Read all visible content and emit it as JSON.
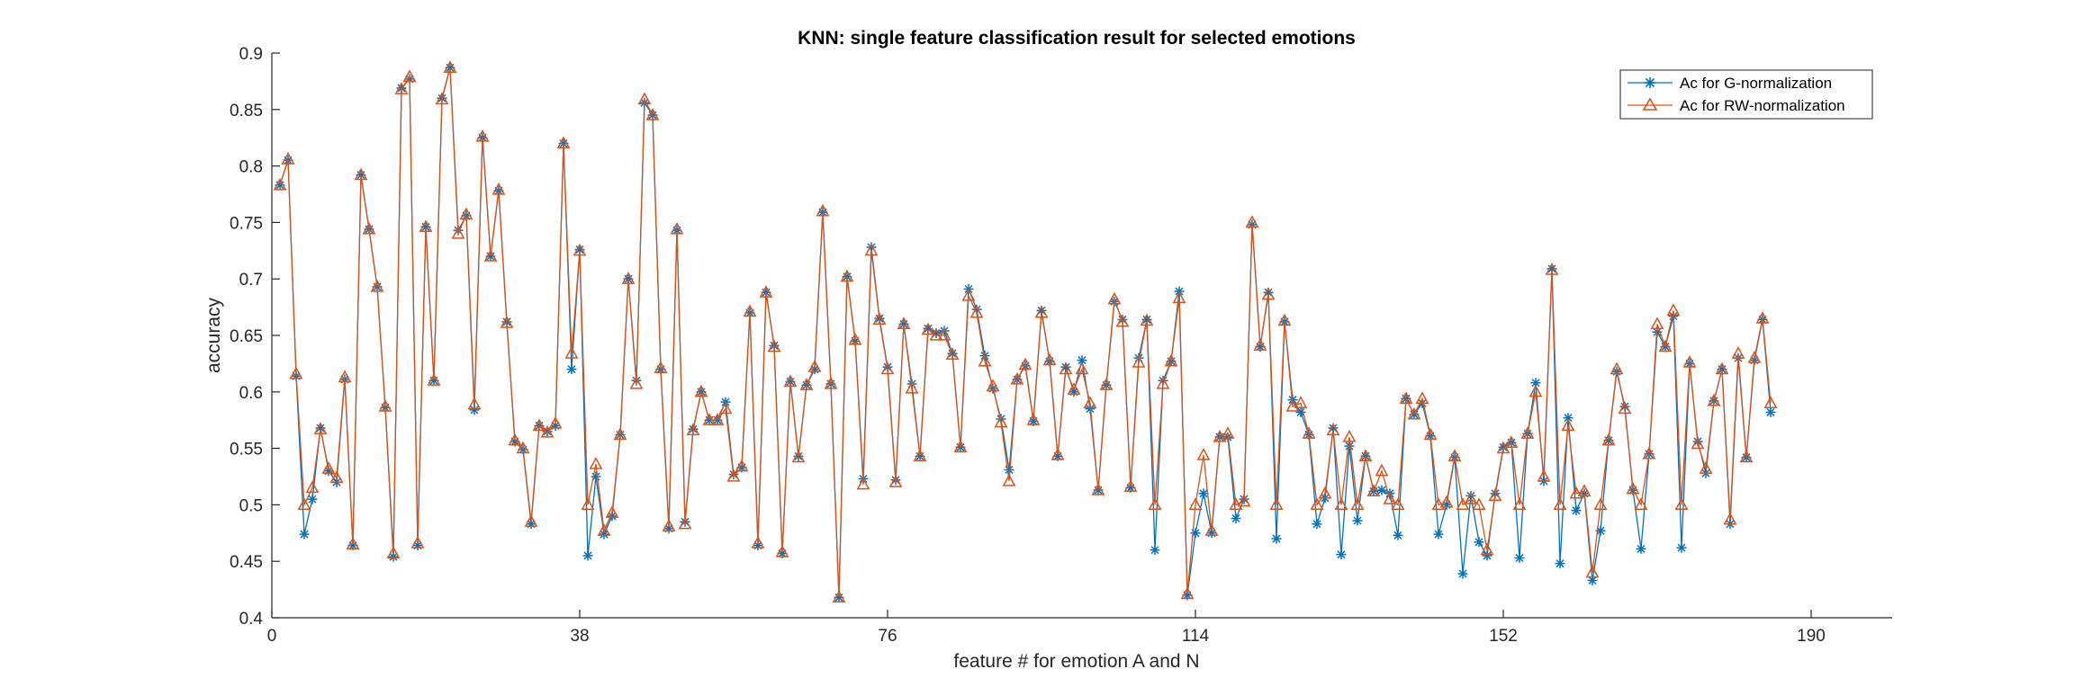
{
  "chart_data": {
    "type": "line",
    "title": "KNN: single feature classification result for selected emotions",
    "xlabel": "feature # for emotion A and N",
    "ylabel": "accuracy",
    "xlim": [
      0,
      200
    ],
    "ylim": [
      0.4,
      0.9
    ],
    "xticks": [
      0,
      38,
      76,
      114,
      152,
      190
    ],
    "yticks": [
      0.4,
      0.45,
      0.5,
      0.55,
      0.6,
      0.65,
      0.7,
      0.75,
      0.8,
      0.85,
      0.9
    ],
    "ytick_labels": [
      "0.4",
      "0.45",
      "0.5",
      "0.55",
      "0.6",
      "0.65",
      "0.7",
      "0.75",
      "0.8",
      "0.85",
      "0.9"
    ],
    "grid": false,
    "legend_position": "top-right",
    "series": [
      {
        "name": "Ac for G-normalization",
        "color": "#0072BD",
        "marker": "asterisk",
        "values": [
          0.783,
          0.805,
          0.614,
          0.474,
          0.505,
          0.568,
          0.53,
          0.52,
          0.611,
          0.464,
          0.792,
          0.744,
          0.693,
          0.586,
          0.454,
          0.869,
          0.877,
          0.464,
          0.746,
          0.61,
          0.86,
          0.887,
          0.743,
          0.756,
          0.584,
          0.825,
          0.72,
          0.778,
          0.662,
          0.556,
          0.549,
          0.483,
          0.57,
          0.565,
          0.57,
          0.82,
          0.62,
          0.726,
          0.455,
          0.525,
          0.474,
          0.49,
          0.562,
          0.7,
          0.61,
          0.856,
          0.845,
          0.62,
          0.479,
          0.743,
          0.485,
          0.567,
          0.6,
          0.575,
          0.575,
          0.591,
          0.527,
          0.533,
          0.67,
          0.464,
          0.688,
          0.641,
          0.457,
          0.609,
          0.543,
          0.606,
          0.62,
          0.759,
          0.607,
          0.418,
          0.702,
          0.645,
          0.523,
          0.728,
          0.665,
          0.622,
          0.522,
          0.66,
          0.607,
          0.543,
          0.656,
          0.652,
          0.654,
          0.634,
          0.551,
          0.691,
          0.673,
          0.632,
          0.603,
          0.576,
          0.531,
          0.611,
          0.623,
          0.574,
          0.672,
          0.627,
          0.543,
          0.622,
          0.6,
          0.628,
          0.585,
          0.513,
          0.606,
          0.68,
          0.664,
          0.515,
          0.63,
          0.664,
          0.46,
          0.61,
          0.627,
          0.689,
          0.42,
          0.475,
          0.51,
          0.475,
          0.56,
          0.56,
          0.488,
          0.505,
          0.748,
          0.64,
          0.688,
          0.47,
          0.662,
          0.593,
          0.582,
          0.562,
          0.483,
          0.506,
          0.568,
          0.456,
          0.552,
          0.486,
          0.543,
          0.512,
          0.513,
          0.51,
          0.473,
          0.594,
          0.58,
          0.59,
          0.561,
          0.474,
          0.5,
          0.542,
          0.439,
          0.508,
          0.467,
          0.455,
          0.51,
          0.551,
          0.555,
          0.453,
          0.563,
          0.608,
          0.521,
          0.709,
          0.448,
          0.577,
          0.495,
          0.51,
          0.433,
          0.477,
          0.557,
          0.618,
          0.587,
          0.513,
          0.461,
          0.545,
          0.653,
          0.64,
          0.667,
          0.462,
          0.625,
          0.556,
          0.528,
          0.592,
          0.62,
          0.483,
          0.63,
          0.542,
          0.628,
          0.664,
          0.582
        ]
      },
      {
        "name": "Ac for RW-normalization",
        "color": "#D95319",
        "marker": "triangle",
        "values": [
          0.783,
          0.806,
          0.616,
          0.5,
          0.515,
          0.567,
          0.532,
          0.524,
          0.613,
          0.465,
          0.792,
          0.744,
          0.693,
          0.587,
          0.457,
          0.868,
          0.879,
          0.466,
          0.746,
          0.61,
          0.859,
          0.887,
          0.74,
          0.757,
          0.589,
          0.826,
          0.72,
          0.779,
          0.661,
          0.557,
          0.55,
          0.485,
          0.57,
          0.564,
          0.572,
          0.82,
          0.634,
          0.725,
          0.5,
          0.536,
          0.477,
          0.493,
          0.562,
          0.7,
          0.607,
          0.859,
          0.845,
          0.621,
          0.481,
          0.744,
          0.483,
          0.566,
          0.6,
          0.575,
          0.575,
          0.585,
          0.525,
          0.534,
          0.671,
          0.466,
          0.688,
          0.64,
          0.458,
          0.609,
          0.542,
          0.606,
          0.622,
          0.76,
          0.607,
          0.418,
          0.702,
          0.646,
          0.518,
          0.725,
          0.664,
          0.62,
          0.52,
          0.66,
          0.603,
          0.543,
          0.655,
          0.65,
          0.65,
          0.633,
          0.551,
          0.685,
          0.67,
          0.627,
          0.605,
          0.573,
          0.521,
          0.611,
          0.624,
          0.575,
          0.67,
          0.628,
          0.544,
          0.62,
          0.602,
          0.62,
          0.59,
          0.513,
          0.606,
          0.682,
          0.662,
          0.516,
          0.626,
          0.663,
          0.5,
          0.607,
          0.627,
          0.683,
          0.421,
          0.5,
          0.544,
          0.477,
          0.56,
          0.563,
          0.5,
          0.503,
          0.75,
          0.641,
          0.686,
          0.5,
          0.663,
          0.587,
          0.59,
          0.563,
          0.5,
          0.51,
          0.566,
          0.5,
          0.56,
          0.5,
          0.543,
          0.512,
          0.53,
          0.505,
          0.5,
          0.594,
          0.58,
          0.594,
          0.562,
          0.5,
          0.502,
          0.543,
          0.5,
          0.505,
          0.5,
          0.46,
          0.508,
          0.55,
          0.555,
          0.5,
          0.563,
          0.6,
          0.525,
          0.708,
          0.5,
          0.57,
          0.51,
          0.512,
          0.44,
          0.5,
          0.557,
          0.62,
          0.585,
          0.514,
          0.5,
          0.545,
          0.66,
          0.64,
          0.672,
          0.5,
          0.626,
          0.554,
          0.532,
          0.592,
          0.62,
          0.487,
          0.634,
          0.542,
          0.63,
          0.665,
          0.59
        ]
      }
    ]
  }
}
